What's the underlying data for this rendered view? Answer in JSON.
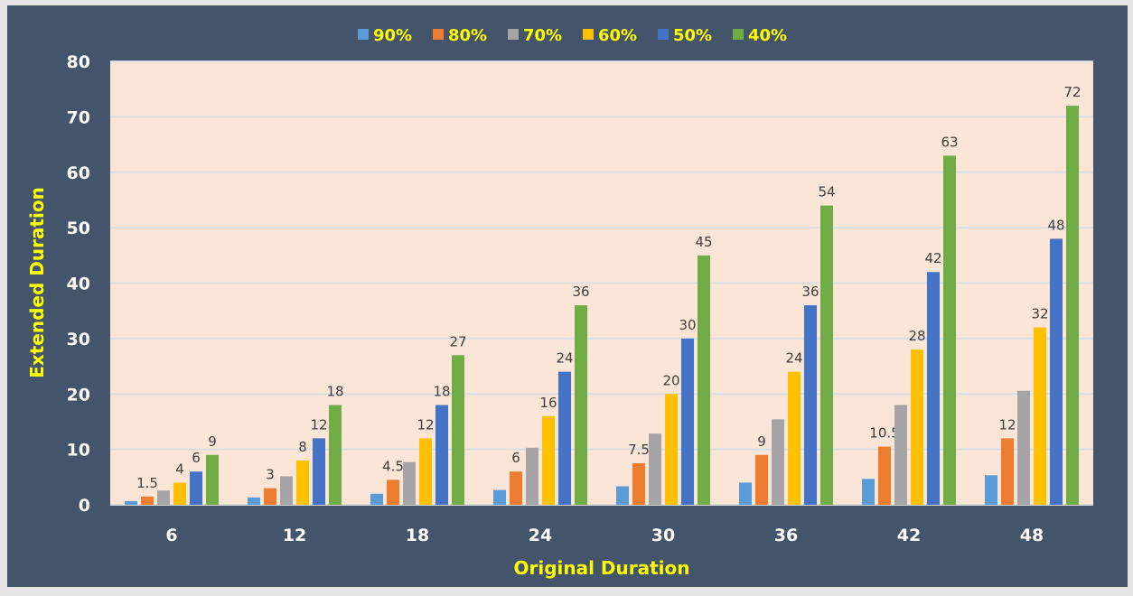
{
  "chart_data": {
    "type": "bar",
    "title": "",
    "xlabel": "Original Duration",
    "ylabel": "Extended Duration",
    "ylim": [
      0,
      80
    ],
    "yticks": [
      0,
      10,
      20,
      30,
      40,
      50,
      60,
      70,
      80
    ],
    "grid": true,
    "legend_position": "top",
    "categories": [
      "6",
      "12",
      "18",
      "24",
      "30",
      "36",
      "42",
      "48"
    ],
    "series": [
      {
        "name": "90%",
        "color": "#5B9BD5",
        "values": [
          0.67,
          1.33,
          2,
          2.67,
          3.33,
          4,
          4.67,
          5.33
        ],
        "labels": null
      },
      {
        "name": "80%",
        "color": "#ED7D31",
        "values": [
          1.5,
          3,
          4.5,
          6,
          7.5,
          9,
          10.5,
          12
        ],
        "labels": [
          "1.5",
          "3",
          "4.5",
          "6",
          "7.5",
          "9",
          "10.5",
          "12"
        ]
      },
      {
        "name": "70%",
        "color": "#A5A5A5",
        "values": [
          2.57,
          5.14,
          7.71,
          10.29,
          12.86,
          15.43,
          18,
          20.57
        ],
        "labels": null
      },
      {
        "name": "60%",
        "color": "#FFC000",
        "values": [
          4,
          8,
          12,
          16,
          20,
          24,
          28,
          32
        ],
        "labels": [
          "4",
          "8",
          "12",
          "16",
          "20",
          "24",
          "28",
          "32"
        ]
      },
      {
        "name": "50%",
        "color": "#4472C4",
        "values": [
          6,
          12,
          18,
          24,
          30,
          36,
          42,
          48
        ],
        "labels": [
          "6",
          "12",
          "18",
          "24",
          "30",
          "36",
          "42",
          "48"
        ]
      },
      {
        "name": "40%",
        "color": "#70AD47",
        "values": [
          9,
          18,
          27,
          36,
          45,
          54,
          63,
          72
        ],
        "labels": [
          "9",
          "18",
          "27",
          "36",
          "45",
          "54",
          "63",
          "72"
        ]
      }
    ]
  },
  "colors": {
    "frame": "#44546A",
    "plot": "#FBE5D6",
    "grid": "#D9DEE4",
    "axis_text": "#FFFFFF",
    "title_text": "#FFFF00"
  }
}
